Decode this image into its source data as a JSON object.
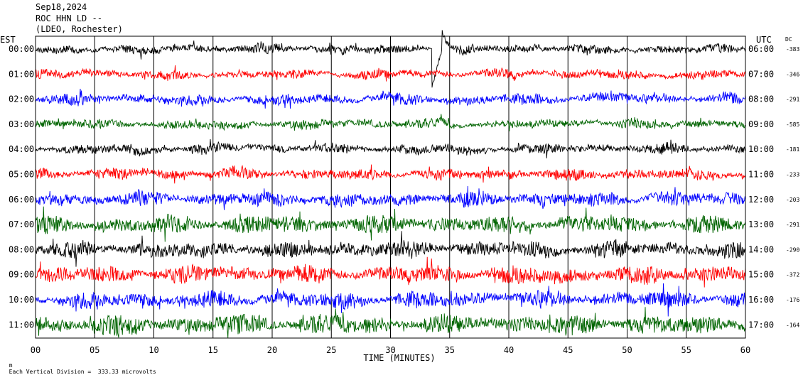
{
  "header": {
    "date": "Sep18,2024",
    "station": "ROC HHN LD --",
    "network": "(LDEO, Rochester)"
  },
  "left_axis_title": "EST",
  "right_axis_title": "UTC",
  "dc_title": "DC",
  "footer": {
    "scale_note": "Each Vertical Division =  333.33 microvolts",
    "corner_mark": "m"
  },
  "chart_data": {
    "type": "line",
    "title": "Sep18,2024 ROC HHN LD -- (LDEO, Rochester)",
    "xlabel": "TIME (MINUTES)",
    "xlim": [
      0,
      60
    ],
    "x_ticks": [
      "00",
      "05",
      "10",
      "15",
      "20",
      "25",
      "30",
      "35",
      "40",
      "45",
      "50",
      "55",
      "60"
    ],
    "grid": true,
    "trace_colors": [
      "#000000",
      "#ff0000",
      "#0000ff",
      "#006400"
    ],
    "rows": [
      {
        "est": "00:00",
        "utc": "06:00",
        "dc": "-383",
        "color": "#000000",
        "amp": 0.55
      },
      {
        "est": "01:00",
        "utc": "07:00",
        "dc": "-346",
        "color": "#ff0000",
        "amp": 0.55
      },
      {
        "est": "02:00",
        "utc": "08:00",
        "dc": "-291",
        "color": "#0000ff",
        "amp": 0.65
      },
      {
        "est": "03:00",
        "utc": "09:00",
        "dc": "-585",
        "color": "#006400",
        "amp": 0.55
      },
      {
        "est": "04:00",
        "utc": "10:00",
        "dc": "-181",
        "color": "#000000",
        "amp": 0.6
      },
      {
        "est": "05:00",
        "utc": "11:00",
        "dc": "-233",
        "color": "#ff0000",
        "amp": 0.7
      },
      {
        "est": "06:00",
        "utc": "12:00",
        "dc": "-203",
        "color": "#0000ff",
        "amp": 0.9
      },
      {
        "est": "07:00",
        "utc": "13:00",
        "dc": "-291",
        "color": "#006400",
        "amp": 1.1
      },
      {
        "est": "08:00",
        "utc": "14:00",
        "dc": "-290",
        "color": "#000000",
        "amp": 1.0
      },
      {
        "est": "09:00",
        "utc": "15:00",
        "dc": "-372",
        "color": "#ff0000",
        "amp": 1.1
      },
      {
        "est": "10:00",
        "utc": "16:00",
        "dc": "-176",
        "color": "#0000ff",
        "amp": 1.0
      },
      {
        "est": "11:00",
        "utc": "17:00",
        "dc": "-164",
        "color": "#006400",
        "amp": 1.2
      }
    ]
  }
}
